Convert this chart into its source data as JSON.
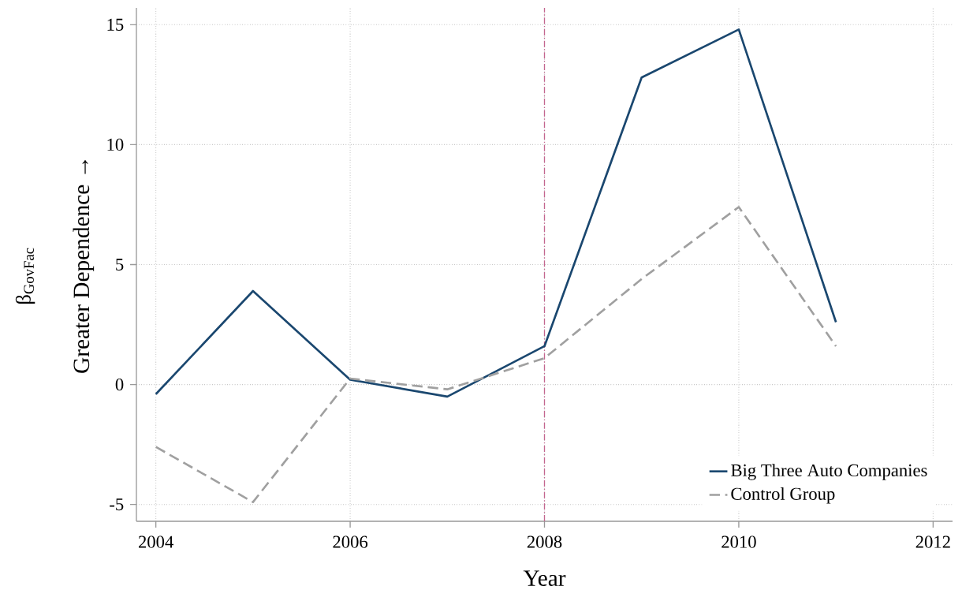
{
  "chart_data": {
    "type": "line",
    "xlabel": "Year",
    "ylabel": "Greater Dependence →",
    "annotations": [
      "β$_{GovFac}$"
    ],
    "x": [
      2004,
      2005,
      2006,
      2007,
      2008,
      2009,
      2010,
      2011
    ],
    "series": [
      {
        "name": "Big Three Auto Companies",
        "color": "#1a476f",
        "line_style": "solid",
        "values": [
          -0.4,
          3.9,
          0.2,
          -0.5,
          1.6,
          12.8,
          14.8,
          2.6
        ]
      },
      {
        "name": "Control Group",
        "color": "#a0a0a0",
        "line_style": "dashed",
        "values": [
          -2.6,
          -4.9,
          0.25,
          -0.2,
          1.1,
          4.4,
          7.4,
          1.6
        ]
      }
    ],
    "xlim": [
      2003.8,
      2012.2
    ],
    "ylim": [
      -5.7,
      15.7
    ],
    "xticks": [
      2004,
      2006,
      2008,
      2010,
      2012
    ],
    "yticks": [
      -5,
      0,
      5,
      10,
      15
    ],
    "ref_lines": [
      {
        "axis": "x",
        "value": 2008,
        "color": "#c4668f",
        "line_style": "dashdotted"
      }
    ],
    "grid": true,
    "legend": "bottom right",
    "marker": "none"
  }
}
